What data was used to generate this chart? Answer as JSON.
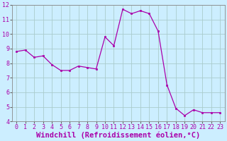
{
  "x": [
    0,
    1,
    2,
    3,
    4,
    5,
    6,
    7,
    8,
    9,
    10,
    11,
    12,
    13,
    14,
    15,
    16,
    17,
    18,
    19,
    20,
    21,
    22,
    23
  ],
  "y": [
    8.8,
    8.9,
    8.4,
    8.5,
    7.9,
    7.5,
    7.5,
    7.8,
    7.7,
    7.6,
    9.8,
    9.2,
    11.7,
    11.4,
    11.6,
    11.4,
    10.2,
    6.5,
    4.9,
    4.4,
    4.8,
    4.6,
    4.6,
    4.6
  ],
  "line_color": "#aa00aa",
  "marker_color": "#aa00aa",
  "bg_color": "#cceeff",
  "grid_color": "#aacccc",
  "xlabel": "Windchill (Refroidissement éolien,°C)",
  "ylim": [
    4,
    12
  ],
  "xlim": [
    -0.5,
    23.5
  ],
  "yticks": [
    4,
    5,
    6,
    7,
    8,
    9,
    10,
    11,
    12
  ],
  "xticks": [
    0,
    1,
    2,
    3,
    4,
    5,
    6,
    7,
    8,
    9,
    10,
    11,
    12,
    13,
    14,
    15,
    16,
    17,
    18,
    19,
    20,
    21,
    22,
    23
  ],
  "tick_label_fontsize": 6.0,
  "xlabel_fontsize": 7.5
}
